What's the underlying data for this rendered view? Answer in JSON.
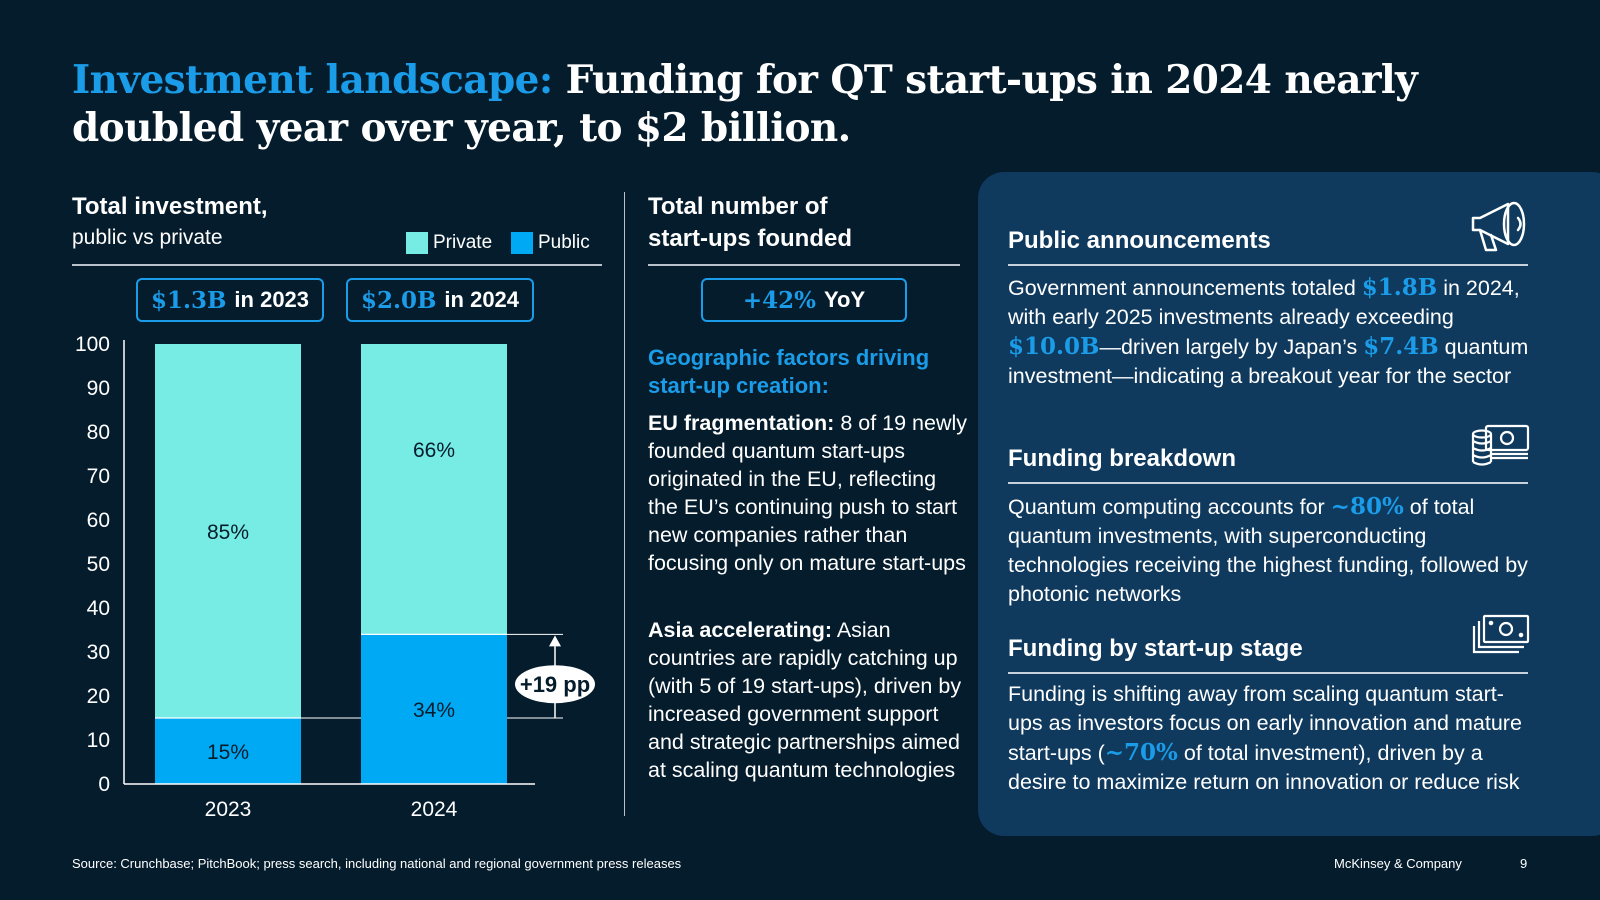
{
  "title": {
    "highlight": "Investment landscape:",
    "rest": " Funding for QT start-ups in 2024 nearly doubled year over year, to $2 billion."
  },
  "left": {
    "title": "Total investment,",
    "subtitle": "public vs private",
    "legend": {
      "private": "Private",
      "public": "Public"
    },
    "callouts": [
      {
        "num": "$1.3B",
        "label": "in 2023"
      },
      {
        "num": "$2.0B",
        "label": "in 2024"
      }
    ],
    "delta_label": "+19 pp"
  },
  "chart_data": {
    "type": "bar",
    "stacked": true,
    "categories": [
      "2023",
      "2024"
    ],
    "series": [
      {
        "name": "Public",
        "values": [
          15,
          34
        ],
        "labels": [
          "15%",
          "34%"
        ],
        "color": "#00a9f4"
      },
      {
        "name": "Private",
        "values": [
          85,
          66
        ],
        "labels": [
          "85%",
          "66%"
        ],
        "color": "#77ece4"
      }
    ],
    "ylim": [
      0,
      100
    ],
    "yticks": [
      0,
      10,
      20,
      30,
      40,
      50,
      60,
      70,
      80,
      90,
      100
    ],
    "legend_position": "top-right"
  },
  "middle": {
    "title_line1": "Total number of",
    "title_line2": "start-ups founded",
    "yoy_num": "+42%",
    "yoy_label": "YoY",
    "geo_heading": "Geographic factors driving start-up creation:",
    "eu_bold": "EU fragmentation:",
    "eu_text": " 8 of 19 newly founded quantum start-ups originated in the EU, reflecting the EU’s continuing push to start new companies rather than focusing only on mature start-ups",
    "asia_bold": "Asia accelerating:",
    "asia_text": " Asian countries are rapidly catching up (with 5 of 19 start-ups), driven by increased government support and strategic partnerships aimed at scaling quantum technologies"
  },
  "right": {
    "s1": {
      "title": "Public announcements",
      "t1": "Government announcements totaled ",
      "n1": "$1.8B",
      "t2": " in 2024, with early 2025 investments already exceeding ",
      "n2": "$10.0B",
      "t3": "—driven largely by Japan’s ",
      "n3": "$7.4B",
      "t4": " quantum investment—indicating a breakout year for the sector"
    },
    "s2": {
      "title": "Funding breakdown",
      "t1": "Quantum computing accounts for ",
      "n1": "~80%",
      "t2": " of total quantum investments, with superconducting technologies receiving the highest funding, followed by photonic networks"
    },
    "s3": {
      "title": "Funding by start-up stage",
      "t1": "Funding is shifting away from scaling quantum start-ups as investors focus on early innovation and mature start-ups (",
      "n1": "~70%",
      "t2": " of total investment), driven by a desire to maximize return on innovation or reduce risk"
    }
  },
  "footer": {
    "source": "Source: Crunchbase; PitchBook; press search, including national and regional government press releases",
    "brand": "McKinsey & Company",
    "page": "9"
  },
  "colors": {
    "background": "#051c2c",
    "accent": "#1a9ce8",
    "private": "#77ece4",
    "public": "#00a9f4",
    "panel": "#0f3a5e"
  },
  "icons": [
    "megaphone-icon",
    "money-stack-icon",
    "banknotes-icon"
  ]
}
